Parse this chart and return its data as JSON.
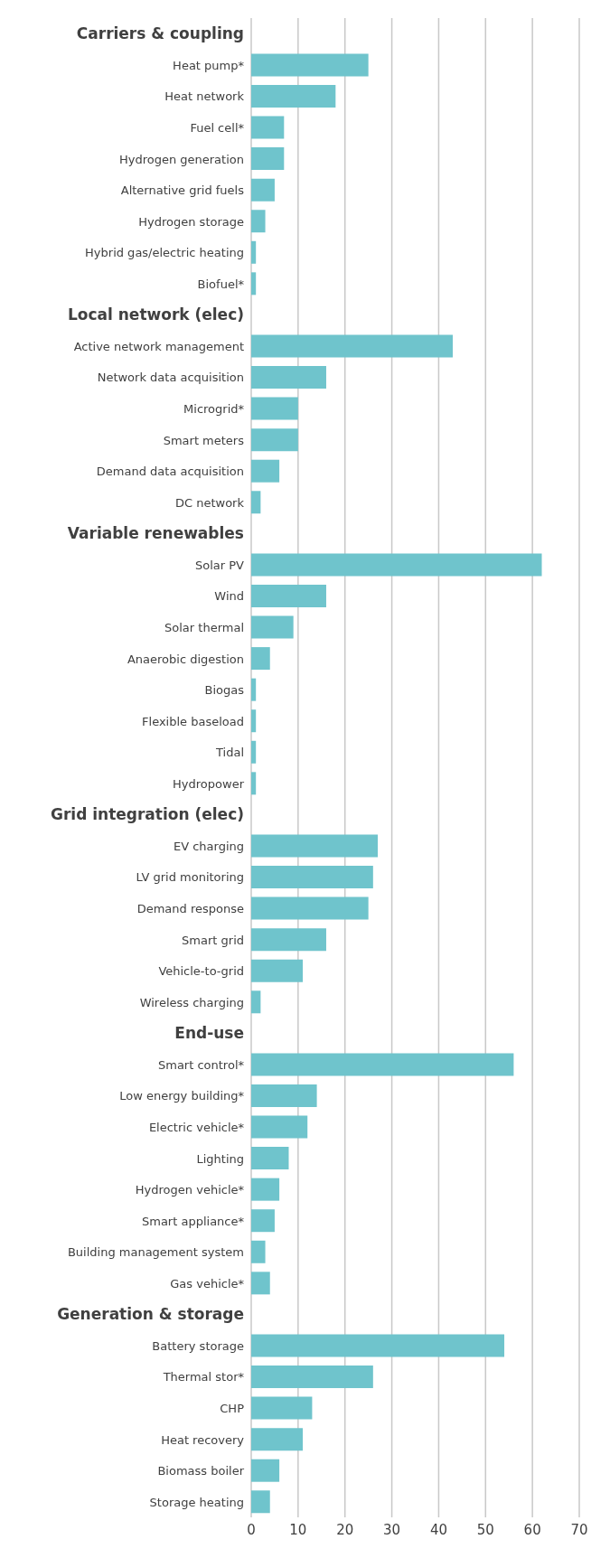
{
  "chart_data": {
    "type": "bar",
    "orientation": "horizontal",
    "categories": [
      "Carriers & coupling",
      "Heat pump*",
      "Heat network",
      "Fuel cell*",
      "Hydrogen generation",
      "Alternative grid fuels",
      "Hydrogen storage",
      "Hybrid gas/electric heating",
      "Biofuel*",
      "Local network (elec)",
      "Active network management",
      "Network data acquisition",
      "Microgrid*",
      "Smart meters",
      "Demand data acquisition",
      "DC network",
      "Variable renewables",
      "Solar PV",
      "Wind",
      "Solar thermal",
      "Anaerobic digestion",
      "Biogas",
      "Flexible baseload",
      "Tidal",
      "Hydropower",
      "Grid integration (elec)",
      "EV charging",
      "LV grid monitoring",
      "Demand response",
      "Smart grid",
      "Vehicle-to-grid",
      "Wireless charging",
      "End-use",
      "Smart control*",
      "Low energy building*",
      "Electric vehicle*",
      "Lighting",
      "Hydrogen vehicle*",
      "Smart appliance*",
      "Building management system",
      "Gas vehicle*",
      "Generation & storage",
      "Battery storage",
      "Thermal stor*",
      "CHP",
      "Heat recovery",
      "Biomass boiler",
      "Storage heating"
    ],
    "values": [
      null,
      25,
      18,
      7,
      7,
      5,
      3,
      1,
      1,
      null,
      43,
      16,
      10,
      10,
      6,
      2,
      null,
      62,
      16,
      9,
      4,
      1,
      1,
      1,
      1,
      null,
      27,
      26,
      25,
      16,
      11,
      2,
      null,
      56,
      14,
      12,
      8,
      6,
      5,
      3,
      4,
      null,
      54,
      26,
      13,
      11,
      6,
      4
    ],
    "color": "#6fc4cc",
    "xlim": [
      0,
      70
    ],
    "xticks": [
      0,
      10,
      20,
      30,
      40,
      50,
      60,
      70
    ],
    "grid": "x"
  }
}
